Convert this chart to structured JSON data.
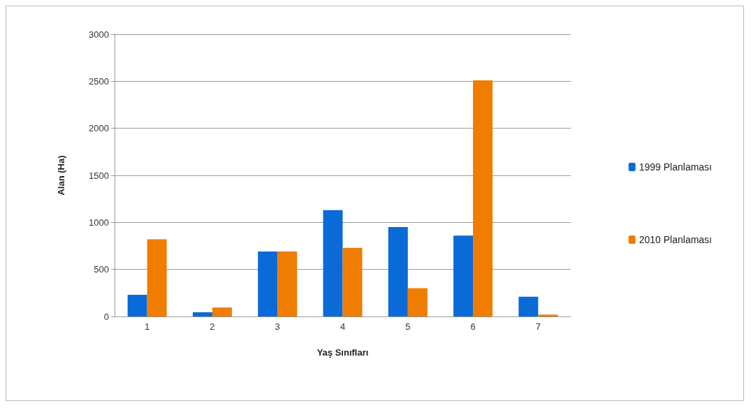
{
  "chart_data": {
    "type": "bar",
    "xlabel": "Yaş Sınıfları",
    "ylabel": "Alan (Ha)",
    "categories": [
      "1",
      "2",
      "3",
      "4",
      "5",
      "6",
      "7"
    ],
    "series": [
      {
        "name": "1999 Planlaması",
        "color": "#0a6ad8",
        "values": [
          230,
          45,
          690,
          1130,
          950,
          860,
          210
        ]
      },
      {
        "name": "2010 Planlaması",
        "color": "#f07c00",
        "values": [
          820,
          95,
          690,
          730,
          300,
          2510,
          20
        ]
      }
    ],
    "ylim": [
      0,
      3000
    ],
    "yticks": [
      0,
      500,
      1000,
      1500,
      2000,
      2500,
      3000
    ],
    "grid": "y",
    "legend": "right"
  }
}
